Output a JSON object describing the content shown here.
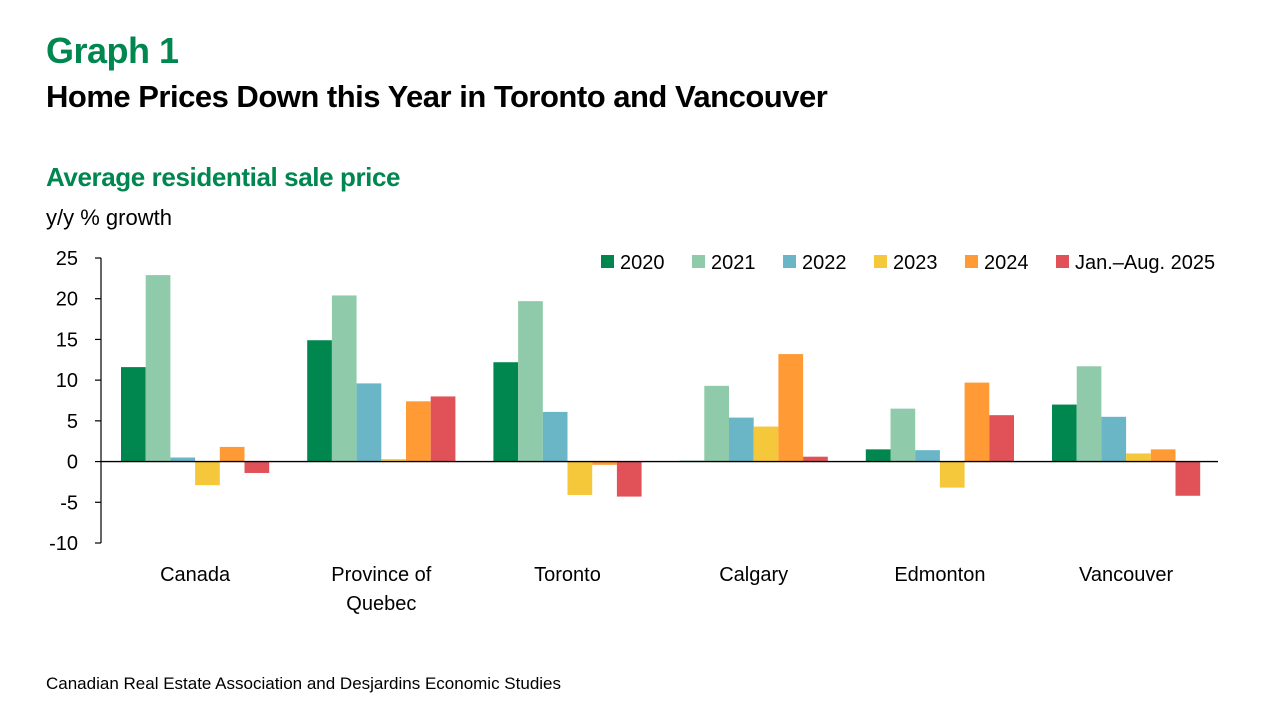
{
  "header": {
    "graph_number": "Graph 1",
    "title": "Home Prices Down this Year in Toronto and Vancouver",
    "subtitle": "Average residential sale price",
    "unit": "y/y % growth"
  },
  "source": "Canadian Real Estate Association and Desjardins Economic Studies",
  "chart_data": {
    "type": "bar",
    "title": "Average residential sale price",
    "xlabel": "",
    "ylabel": "y/y % growth",
    "ylim": [
      -10,
      25
    ],
    "yticks": [
      25,
      20,
      15,
      10,
      5,
      0,
      -5,
      -10
    ],
    "grid": false,
    "legend_position": "top-right",
    "categories": [
      [
        "Canada"
      ],
      [
        "Province of",
        "Quebec"
      ],
      [
        "Toronto"
      ],
      [
        "Calgary"
      ],
      [
        "Edmonton"
      ],
      [
        "Vancouver"
      ]
    ],
    "series": [
      {
        "name": "2020",
        "color": "#00874F",
        "values": [
          11.6,
          14.9,
          12.2,
          0.1,
          1.5,
          7.0
        ]
      },
      {
        "name": "2021",
        "color": "#8FCAAA",
        "values": [
          22.9,
          20.4,
          19.7,
          9.3,
          6.5,
          11.7
        ]
      },
      {
        "name": "2022",
        "color": "#6AB5C6",
        "values": [
          0.5,
          9.6,
          6.1,
          5.4,
          1.4,
          5.5
        ]
      },
      {
        "name": "2023",
        "color": "#F5C83B",
        "values": [
          -2.9,
          0.3,
          -4.1,
          4.3,
          -3.2,
          1.0
        ]
      },
      {
        "name": "2024",
        "color": "#FF9A35",
        "values": [
          1.8,
          7.4,
          -0.4,
          13.2,
          9.7,
          1.5
        ]
      },
      {
        "name": "Jan.–Aug. 2025",
        "color": "#E05257",
        "values": [
          -1.4,
          8.0,
          -4.3,
          0.6,
          5.7,
          -4.2
        ]
      }
    ]
  }
}
